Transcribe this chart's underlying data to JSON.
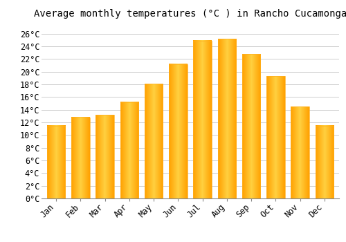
{
  "title": "Average monthly temperatures (°C ) in Rancho Cucamonga",
  "months": [
    "Jan",
    "Feb",
    "Mar",
    "Apr",
    "May",
    "Jun",
    "Jul",
    "Aug",
    "Sep",
    "Oct",
    "Nov",
    "Dec"
  ],
  "values": [
    11.5,
    12.8,
    13.2,
    15.2,
    18.1,
    21.2,
    24.9,
    25.2,
    22.8,
    19.3,
    14.5,
    11.5
  ],
  "bar_color_center": "#FFD040",
  "bar_color_edge": "#FFA000",
  "background_color": "#FFFFFF",
  "grid_color": "#CCCCCC",
  "yticks": [
    0,
    2,
    4,
    6,
    8,
    10,
    12,
    14,
    16,
    18,
    20,
    22,
    24,
    26
  ],
  "ylim": [
    0,
    27.5
  ],
  "title_fontsize": 10,
  "tick_fontsize": 8.5,
  "font_family": "monospace",
  "bar_width": 0.75
}
